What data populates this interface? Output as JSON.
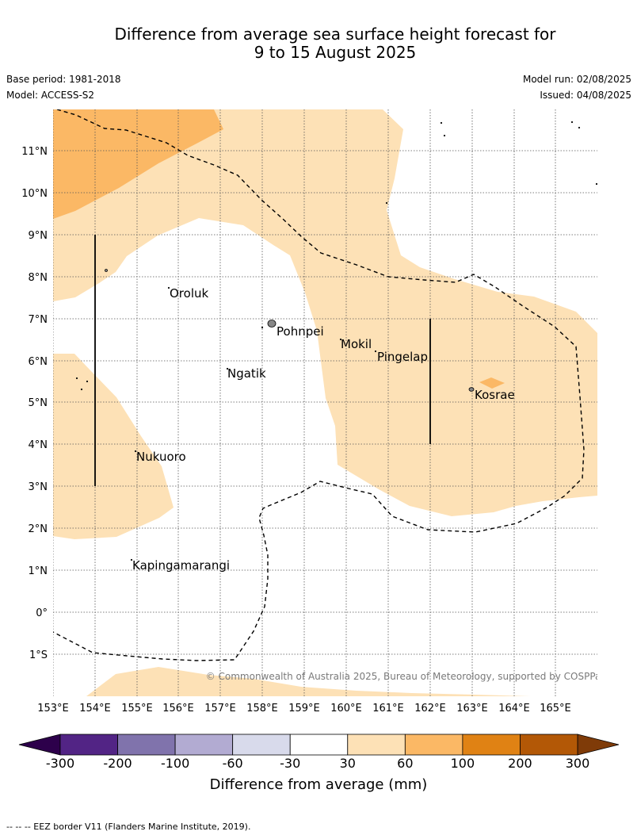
{
  "title": {
    "line1": "Difference from average sea surface height forecast for",
    "line2": "9 to 15 August 2025"
  },
  "meta": {
    "base_period": "Base period: 1981-2018",
    "model": "Model: ACCESS-S2",
    "model_run": "Model run: 02/08/2025",
    "issued": "Issued: 04/08/2025"
  },
  "map": {
    "lon_range": [
      153,
      166
    ],
    "lat_range": [
      -2,
      12
    ],
    "lon_ticks": [
      "153°E",
      "154°E",
      "155°E",
      "156°E",
      "157°E",
      "158°E",
      "159°E",
      "160°E",
      "161°E",
      "162°E",
      "163°E",
      "164°E",
      "165°E"
    ],
    "lat_ticks": [
      "11°N",
      "10°N",
      "9°N",
      "8°N",
      "7°N",
      "6°N",
      "5°N",
      "4°N",
      "3°N",
      "2°N",
      "1°N",
      "0°",
      "1°S"
    ],
    "places": [
      {
        "name": "Oroluk",
        "lon": 155.8,
        "lat": 7.6
      },
      {
        "name": "Pohnpei",
        "lon": 158.35,
        "lat": 6.9
      },
      {
        "name": "Mokil",
        "lon": 159.8,
        "lat": 6.7
      },
      {
        "name": "Ngatik",
        "lon": 157.2,
        "lat": 5.8
      },
      {
        "name": "Pingelap",
        "lon": 160.7,
        "lat": 6.2
      },
      {
        "name": "Kosrae",
        "lon": 163.0,
        "lat": 5.3
      },
      {
        "name": "Nukuoro",
        "lon": 155.0,
        "lat": 3.9
      },
      {
        "name": "Kapingamarangi",
        "lon": 154.8,
        "lat": 1.1
      }
    ],
    "grid": true,
    "copyright": "© Commonwealth of Australia 2025, Bureau of Meteorology, supported by COSPPac",
    "colors": {
      "band_30_60": "#fde1b6",
      "band_60_100": "#fbb865",
      "land": "#888888",
      "eez_line": "#000000"
    }
  },
  "colorbar": {
    "title": "Difference from average (mm)",
    "ticks": [
      "-300",
      "-200",
      "-100",
      "-60",
      "-30",
      "30",
      "60",
      "100",
      "200",
      "300"
    ],
    "colors": [
      "#522485",
      "#8073ac",
      "#b2abd2",
      "#d8daeb",
      "#ffffff",
      "#fde1b6",
      "#fbb865",
      "#e08214",
      "#b35806"
    ],
    "extend_low": "#2d004b",
    "extend_high": "#7f3b08"
  },
  "footnote": "--  --  -- EEZ border V11 (Flanders Marine Institute, 2019)."
}
